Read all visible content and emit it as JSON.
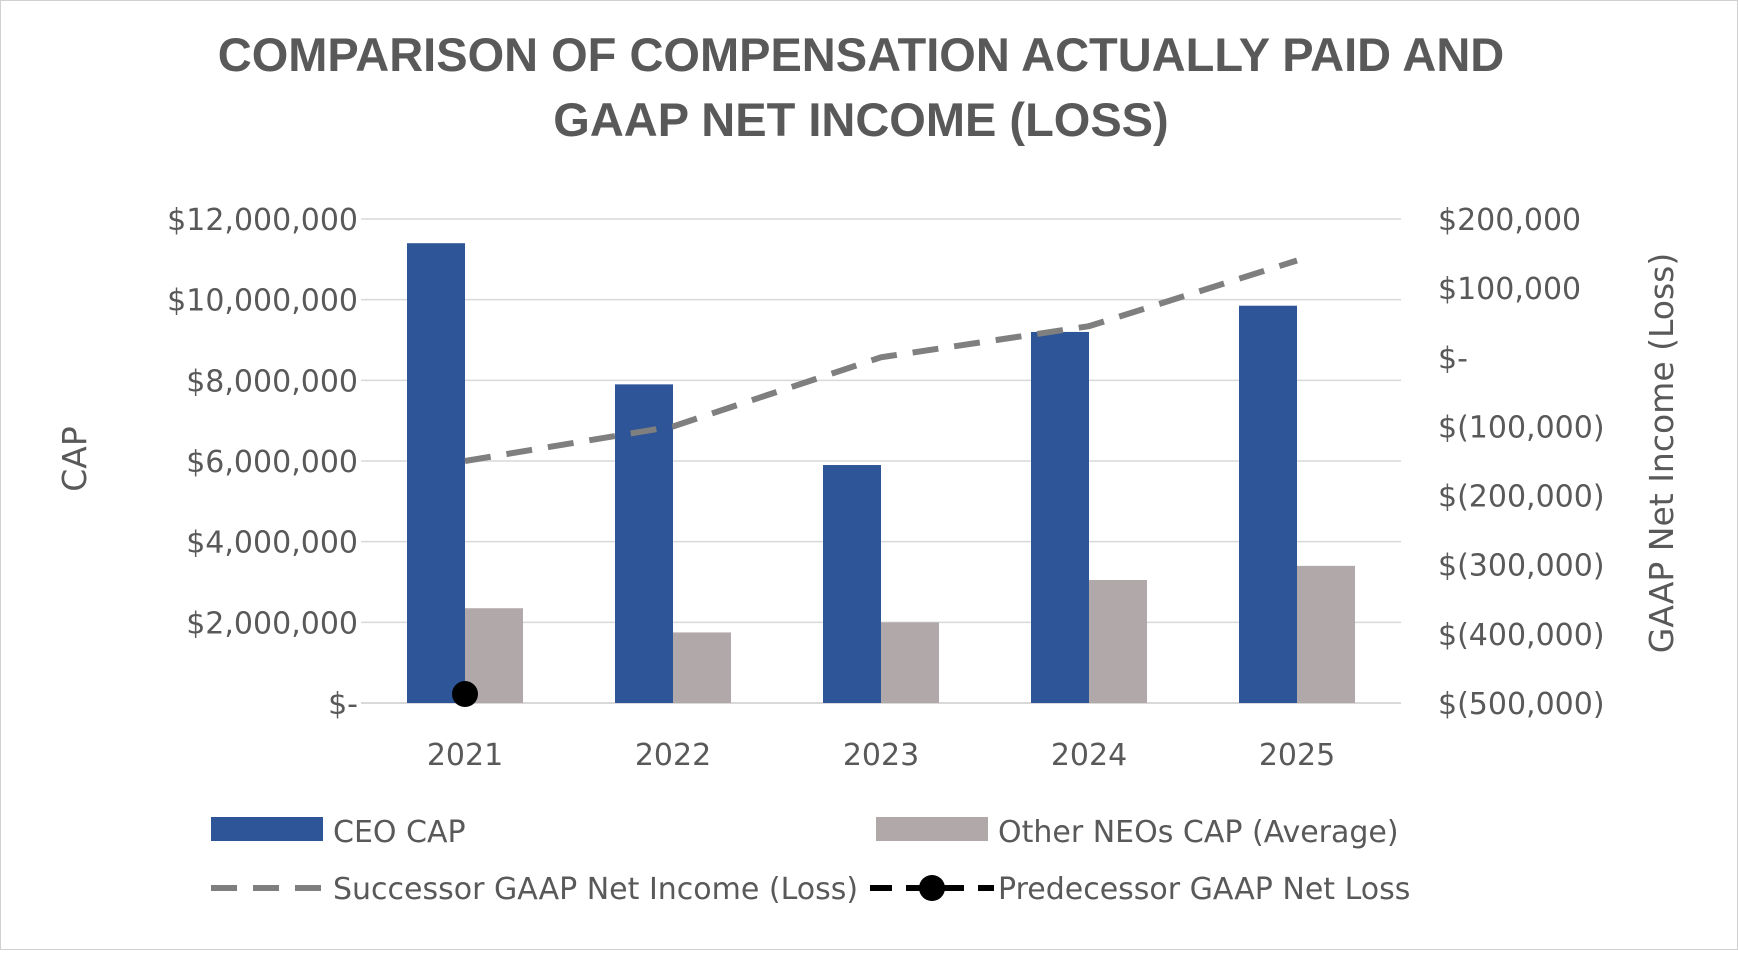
{
  "chart_data": {
    "type": "bar",
    "title_lines": [
      "COMPARISON OF COMPENSATION ACTUALLY PAID AND",
      "GAAP NET INCOME (LOSS)"
    ],
    "categories": [
      "2021",
      "2022",
      "2023",
      "2024",
      "2025"
    ],
    "ylabel": "CAP",
    "y2label": "GAAP Net Income (Loss)",
    "ylim": [
      0,
      12000000
    ],
    "y2lim": [
      -500000,
      200000
    ],
    "yticks": [
      {
        "value": 0,
        "label": "$-"
      },
      {
        "value": 2000000,
        "label": "$2,000,000"
      },
      {
        "value": 4000000,
        "label": "$4,000,000"
      },
      {
        "value": 6000000,
        "label": "$6,000,000"
      },
      {
        "value": 8000000,
        "label": "$8,000,000"
      },
      {
        "value": 10000000,
        "label": "$10,000,000"
      },
      {
        "value": 12000000,
        "label": "$12,000,000"
      }
    ],
    "y2ticks": [
      {
        "value": -500000,
        "label": "$(500,000)"
      },
      {
        "value": -400000,
        "label": "$(400,000)"
      },
      {
        "value": -300000,
        "label": "$(300,000)"
      },
      {
        "value": -200000,
        "label": "$(200,000)"
      },
      {
        "value": -100000,
        "label": "$(100,000)"
      },
      {
        "value": 0,
        "label": "$-"
      },
      {
        "value": 100000,
        "label": "$100,000"
      },
      {
        "value": 200000,
        "label": "$200,000"
      }
    ],
    "grid": true,
    "legend_position": "bottom",
    "series": [
      {
        "name": "CEO CAP",
        "kind": "bar",
        "axis": "left",
        "color": "#2e5597",
        "values": [
          11400000,
          7900000,
          5900000,
          9200000,
          9850000
        ]
      },
      {
        "name": "Other NEOs CAP (Average)",
        "kind": "bar",
        "axis": "left",
        "color": "#b1a9a9",
        "values": [
          2350000,
          1750000,
          2000000,
          3050000,
          3400000
        ]
      },
      {
        "name": "Successor GAAP Net Income (Loss)",
        "kind": "line",
        "style": "dashed",
        "axis": "right",
        "color": "#7f7f7f",
        "values": [
          -150000,
          -100000,
          0,
          45000,
          140000
        ]
      },
      {
        "name": "Predecessor GAAP Net Loss",
        "kind": "marker",
        "style": "dashed-with-dot",
        "axis": "right",
        "color": "#000000",
        "values": [
          -487000,
          null,
          null,
          null,
          null
        ]
      }
    ]
  }
}
